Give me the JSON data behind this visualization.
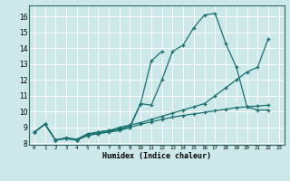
{
  "xlabel": "Humidex (Indice chaleur)",
  "bg_color": "#cce8e8",
  "grid_color": "#ffffff",
  "line_color": "#1a7070",
  "xlim": [
    -0.5,
    23.5
  ],
  "ylim": [
    7.9,
    16.7
  ],
  "xticks": [
    0,
    1,
    2,
    3,
    4,
    5,
    6,
    7,
    8,
    9,
    10,
    11,
    12,
    13,
    14,
    15,
    16,
    17,
    18,
    19,
    20,
    21,
    22,
    23
  ],
  "yticks": [
    8,
    9,
    10,
    11,
    12,
    13,
    14,
    15,
    16
  ],
  "lines": [
    {
      "x": [
        0,
        1,
        2,
        3,
        4,
        5,
        6,
        7,
        8,
        9,
        10,
        11,
        12,
        13,
        14,
        15,
        16,
        17,
        18,
        19,
        20,
        21,
        22
      ],
      "y": [
        8.7,
        9.2,
        8.2,
        8.3,
        8.2,
        8.5,
        8.6,
        8.7,
        8.8,
        9.0,
        10.5,
        10.4,
        12.0,
        13.8,
        14.2,
        15.3,
        16.1,
        16.2,
        14.3,
        12.8,
        10.3,
        10.1,
        10.1
      ]
    },
    {
      "x": [
        0,
        1,
        2,
        3,
        4,
        5,
        6,
        7,
        8,
        9,
        10,
        11,
        12
      ],
      "y": [
        8.7,
        9.2,
        8.2,
        8.3,
        8.2,
        8.5,
        8.7,
        8.8,
        8.9,
        9.1,
        10.5,
        13.2,
        13.8
      ]
    },
    {
      "x": [
        0,
        1,
        2,
        3,
        4,
        5,
        6,
        7,
        8,
        9,
        10,
        11,
        12,
        13,
        14,
        15,
        16,
        17,
        18,
        19,
        20,
        21,
        22
      ],
      "y": [
        8.7,
        9.2,
        8.2,
        8.35,
        8.25,
        8.6,
        8.7,
        8.8,
        9.0,
        9.15,
        9.3,
        9.5,
        9.7,
        9.9,
        10.1,
        10.3,
        10.5,
        11.0,
        11.5,
        12.0,
        12.5,
        12.8,
        14.6
      ]
    },
    {
      "x": [
        0,
        1,
        2,
        3,
        4,
        5,
        6,
        7,
        8,
        9,
        10,
        11,
        12,
        13,
        14,
        15,
        16,
        17,
        18,
        19,
        20,
        21,
        22
      ],
      "y": [
        8.7,
        9.2,
        8.2,
        8.3,
        8.2,
        8.5,
        8.6,
        8.75,
        8.85,
        9.0,
        9.2,
        9.35,
        9.5,
        9.65,
        9.75,
        9.85,
        9.95,
        10.05,
        10.15,
        10.25,
        10.3,
        10.35,
        10.4
      ]
    }
  ]
}
